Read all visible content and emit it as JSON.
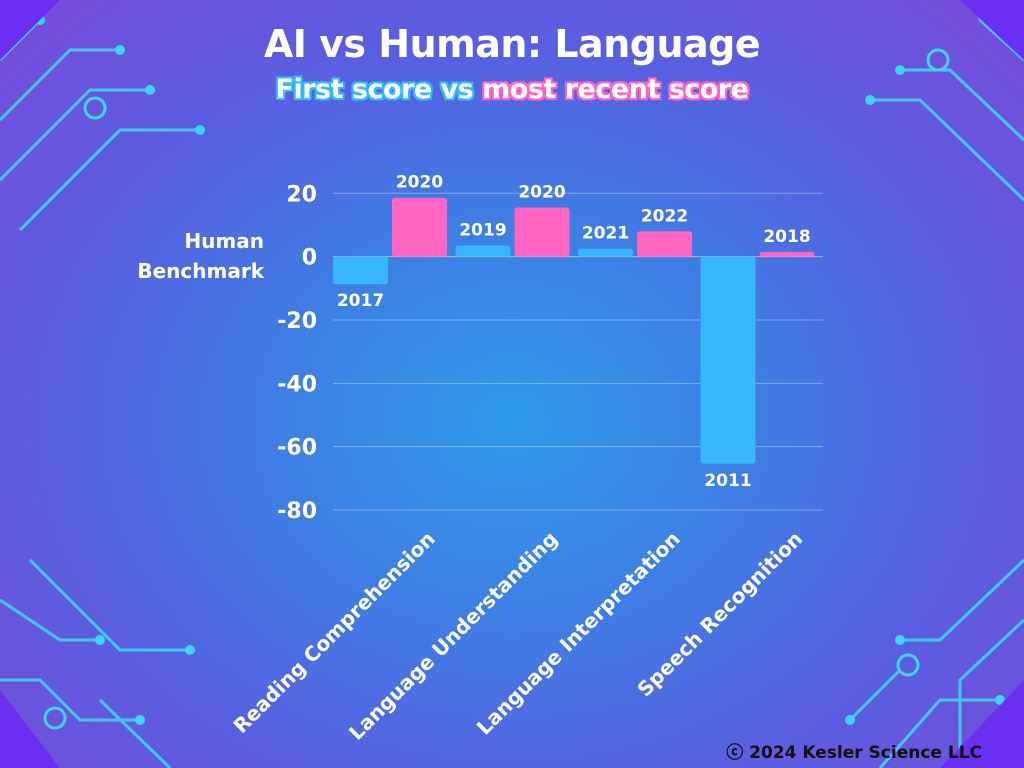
{
  "title": "AI vs Human: Language",
  "subtitle_first": "First score vs",
  "subtitle_recent": "most recent score",
  "benchmark_label_1": "Human",
  "benchmark_label_2": "Benchmark",
  "copyright": "ⓒ  2024 Kesler Science LLC",
  "colors": {
    "first": "#38b6ff",
    "recent": "#ff66c4"
  },
  "chart_data": {
    "type": "bar",
    "title": "AI vs Human: Language",
    "subtitle": "First score vs most recent score",
    "categories": [
      "Reading Comprehension",
      "Language Understanding",
      "Language Interpretation",
      "Speech Recognition"
    ],
    "series": [
      {
        "values": [
          -8.7,
          3.5,
          2.5,
          -65.4
        ],
        "labels": [
          "2017",
          "2019",
          "2021",
          "2011"
        ],
        "color": "#38b6ff"
      },
      {
        "values": [
          18.6,
          15.5,
          8.0,
          1.5
        ],
        "labels": [
          "2020",
          "2020",
          "2022",
          "2018"
        ],
        "color": "#ff66c4"
      }
    ],
    "yticks": [
      20,
      0,
      -20,
      -40,
      -60,
      -80
    ],
    "ylim": [
      -80,
      20
    ],
    "grid": true,
    "legend": "none"
  }
}
